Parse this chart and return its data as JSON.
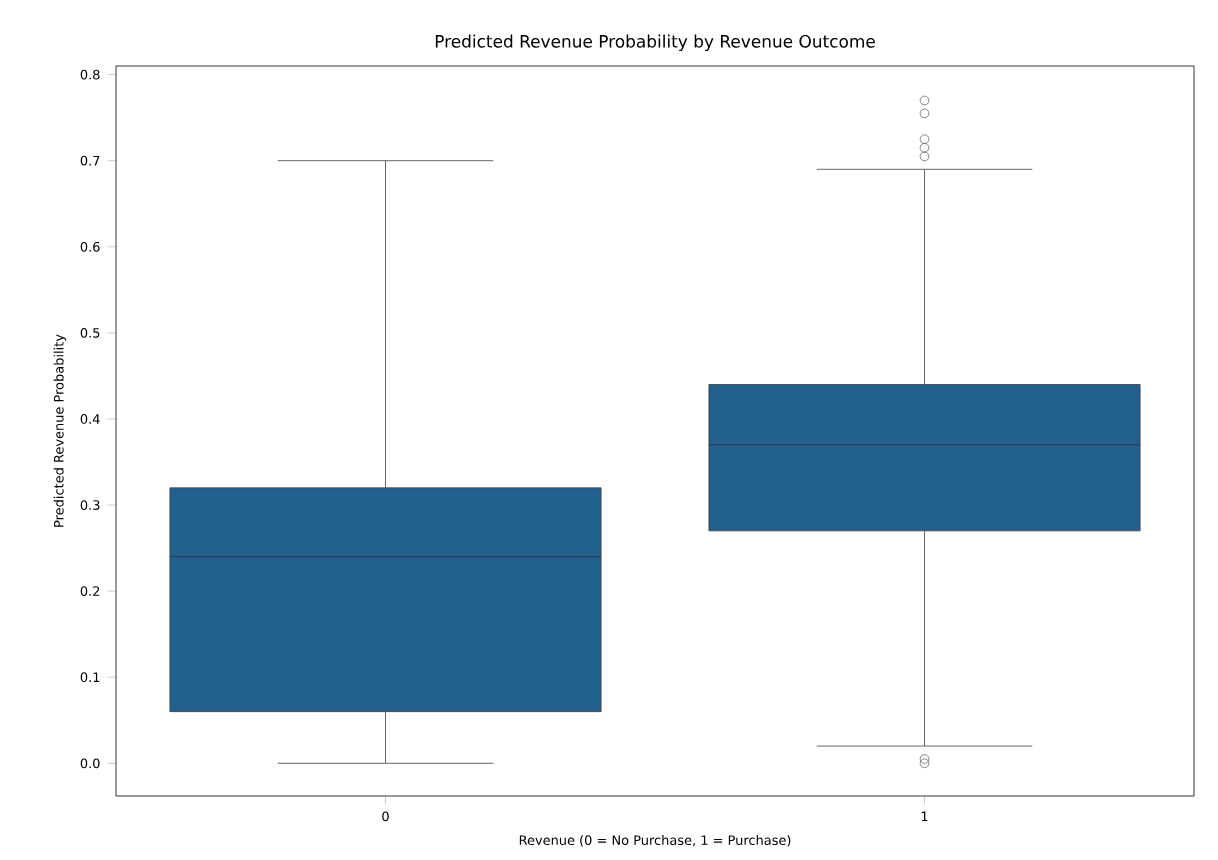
{
  "chart_data": {
    "type": "box",
    "title": "Predicted Revenue Probability by Revenue Outcome",
    "xlabel": "Revenue (0 = No Purchase, 1 = Purchase)",
    "ylabel": "Predicted Revenue Probability",
    "categories": [
      "0",
      "1"
    ],
    "color": "#22608e",
    "boxes": [
      {
        "low": 0.0,
        "q1": 0.06,
        "median": 0.24,
        "q3": 0.32,
        "high": 0.7
      },
      {
        "low": 0.02,
        "q1": 0.27,
        "median": 0.37,
        "q3": 0.44,
        "high": 0.69,
        "outliers": [
          0.0,
          0.005,
          0.705,
          0.715,
          0.725,
          0.755,
          0.77
        ]
      }
    ],
    "ylim": [
      -0.038,
      0.81
    ],
    "yticks": [
      {
        "value": 0.0,
        "label": "0.0"
      },
      {
        "value": 0.1,
        "label": "0.1"
      },
      {
        "value": 0.2,
        "label": "0.2"
      },
      {
        "value": 0.3,
        "label": "0.3"
      },
      {
        "value": 0.4,
        "label": "0.4"
      },
      {
        "value": 0.5,
        "label": "0.5"
      },
      {
        "value": 0.6,
        "label": "0.6"
      },
      {
        "value": 0.7,
        "label": "0.7"
      },
      {
        "value": 0.8,
        "label": "0.8"
      }
    ],
    "grid": false
  }
}
